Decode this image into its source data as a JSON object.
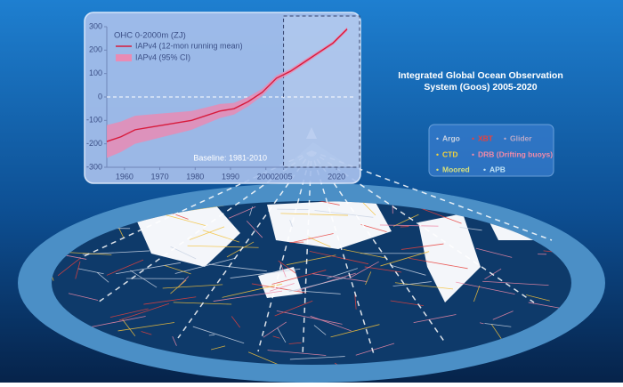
{
  "chart_data": {
    "type": "line",
    "y_label": "OHC 0-2000m (ZJ)",
    "annotation": "Baseline: 1981-2010",
    "x": [
      1955,
      1959,
      1963,
      1967,
      1971,
      1975,
      1979,
      1983,
      1987,
      1991,
      1995,
      1999,
      2003,
      2007,
      2011,
      2015,
      2019,
      2023
    ],
    "series": [
      {
        "name": "IAPv4 (12-mon running mean)",
        "color": "#d81b3c",
        "values": [
          -190,
          -170,
          -140,
          -130,
          -120,
          -110,
          -100,
          -80,
          -60,
          -50,
          -20,
          20,
          80,
          110,
          150,
          190,
          230,
          290
        ]
      },
      {
        "name": "IAPv4 (95% CI)",
        "color": "#e98bb4",
        "upper": [
          -120,
          -105,
          -80,
          -75,
          -70,
          -65,
          -60,
          -45,
          -30,
          -25,
          0,
          35,
          92,
          120,
          160,
          198,
          238,
          298
        ],
        "lower": [
          -260,
          -235,
          -200,
          -185,
          -170,
          -155,
          -140,
          -115,
          -90,
          -75,
          -40,
          5,
          68,
          100,
          140,
          182,
          222,
          282
        ]
      }
    ],
    "xlim": [
      1955,
      2025
    ],
    "xticks": [
      1960,
      1970,
      1980,
      1990,
      2000,
      2005,
      2020
    ],
    "ylim": [
      -300,
      300
    ],
    "yticks": [
      -300,
      -200,
      -100,
      0,
      100,
      200,
      300
    ]
  },
  "infographic": {
    "title": "Integrated Global Ocean Observation System (Goos) 2005-2020",
    "legend": [
      {
        "name": "Argo",
        "color": "#c9d3e3"
      },
      {
        "name": "XBT",
        "color": "#e8413c"
      },
      {
        "name": "Glider",
        "color": "#b9a9c8"
      },
      {
        "name": "CTD",
        "color": "#f3d33b"
      },
      {
        "name": "DRB (Drifting buoys)",
        "color": "#f08aa8"
      },
      {
        "name": "Moored",
        "color": "#d8e07a"
      },
      {
        "name": "APB",
        "color": "#bfe2f5"
      }
    ]
  }
}
